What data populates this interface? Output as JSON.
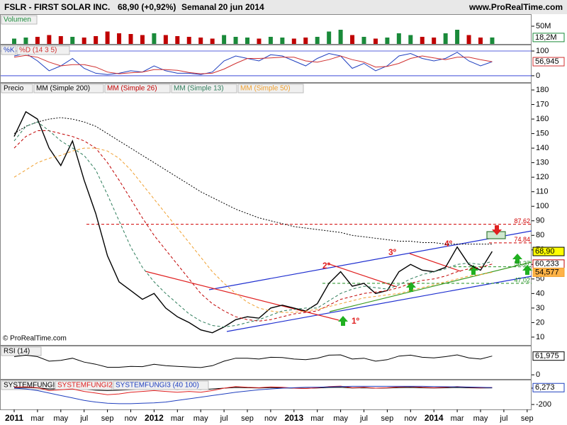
{
  "header": {
    "symbol": "FSLR - FIRST SOLAR INC.",
    "quote": "68,90 (+0,92%)",
    "period": "Semanal",
    "date": "20 jun 2014",
    "site": "www.ProRealTime.com"
  },
  "annotations": {
    "copyright": "© ProRealTime.com",
    "wave1": "1º",
    "wave2": "2º",
    "wave3": "3º",
    "wave4": "4º"
  },
  "chart_data": [
    {
      "type": "line",
      "x": [
        "2011-01",
        "2011-02",
        "2011-03",
        "2011-04",
        "2011-05",
        "2011-06",
        "2011-07",
        "2011-08",
        "2011-09",
        "2011-10",
        "2011-11",
        "2011-12",
        "2012-01",
        "2012-02",
        "2012-03",
        "2012-04",
        "2012-05",
        "2012-06",
        "2012-07",
        "2012-08",
        "2012-09",
        "2012-10",
        "2012-11",
        "2012-12",
        "2013-01",
        "2013-02",
        "2013-03",
        "2013-04",
        "2013-05",
        "2013-06",
        "2013-07",
        "2013-08",
        "2013-09",
        "2013-10",
        "2013-11",
        "2013-12",
        "2014-01",
        "2014-02",
        "2014-03",
        "2014-04",
        "2014-05",
        "2014-06"
      ],
      "xticks": [
        {
          "value": "2011-01",
          "label": "2011"
        },
        {
          "value": "2011-03",
          "label": "mar"
        },
        {
          "value": "2011-05",
          "label": "may"
        },
        {
          "value": "2011-07",
          "label": "jul"
        },
        {
          "value": "2011-09",
          "label": "sep"
        },
        {
          "value": "2011-11",
          "label": "nov"
        },
        {
          "value": "2012-01",
          "label": "2012"
        },
        {
          "value": "2012-03",
          "label": "mar"
        },
        {
          "value": "2012-05",
          "label": "may"
        },
        {
          "value": "2012-07",
          "label": "jul"
        },
        {
          "value": "2012-09",
          "label": "sep"
        },
        {
          "value": "2012-11",
          "label": "nov"
        },
        {
          "value": "2013-01",
          "label": "2013"
        },
        {
          "value": "2013-03",
          "label": "mar"
        },
        {
          "value": "2013-05",
          "label": "may"
        },
        {
          "value": "2013-07",
          "label": "jul"
        },
        {
          "value": "2013-09",
          "label": "sep"
        },
        {
          "value": "2013-11",
          "label": "nov"
        },
        {
          "value": "2014-01",
          "label": "2014"
        },
        {
          "value": "2014-03",
          "label": "mar"
        },
        {
          "value": "2014-05",
          "label": "may"
        },
        {
          "value": "2014-07",
          "label": "jul"
        },
        {
          "value": "2014-09",
          "label": "sep"
        }
      ],
      "ylim": [
        4.6,
        184.4
      ],
      "yticks": [
        10,
        20,
        30,
        40,
        50,
        60,
        70,
        80,
        90,
        100,
        110,
        120,
        130,
        140,
        150,
        160,
        170,
        180
      ],
      "series": [
        {
          "name": "Precio",
          "color": "#000000",
          "style": "solid",
          "last_label": "68,90",
          "label_bg": "#ffff00",
          "values": [
            148,
            165,
            160,
            140,
            128,
            145,
            118,
            95,
            66,
            48,
            42,
            36,
            40,
            30,
            24,
            20,
            15,
            13,
            17,
            22,
            24,
            23,
            30,
            32,
            30,
            28,
            33,
            47,
            55,
            45,
            47,
            40,
            42,
            55,
            60,
            56,
            55,
            58,
            72,
            60,
            56,
            68.9
          ]
        },
        {
          "name": "MM (Simple 200)",
          "color": "#000000",
          "style": "dotted",
          "values": [
            150,
            155,
            158,
            160,
            161,
            160,
            158,
            155,
            150,
            145,
            140,
            135,
            130,
            125,
            120,
            115,
            110,
            106,
            102,
            98,
            95,
            92,
            90,
            88,
            86,
            85,
            84,
            83,
            82,
            80,
            79,
            78,
            77,
            76,
            76,
            75,
            75,
            74,
            74,
            74,
            74,
            74
          ]
        },
        {
          "name": "MM (Simple 26)",
          "color": "#c00000",
          "style": "dashed",
          "last_label": "60,233",
          "label_bg": "#ffffff",
          "values": [
            140,
            148,
            152,
            152,
            150,
            148,
            145,
            140,
            130,
            118,
            105,
            92,
            80,
            70,
            60,
            50,
            40,
            33,
            28,
            24,
            22,
            21,
            22,
            24,
            26,
            27,
            28,
            32,
            36,
            38,
            40,
            41,
            42,
            44,
            47,
            49,
            50,
            52,
            55,
            57,
            58,
            60.233
          ]
        },
        {
          "name": "MM (Simple 13)",
          "color": "#2e7d5b",
          "style": "dashed",
          "values": [
            145,
            155,
            158,
            152,
            145,
            140,
            135,
            125,
            108,
            90,
            72,
            58,
            48,
            40,
            33,
            26,
            21,
            18,
            17,
            18,
            20,
            22,
            25,
            28,
            29,
            30,
            30,
            35,
            40,
            43,
            45,
            44,
            43,
            46,
            50,
            53,
            55,
            57,
            60,
            61,
            60,
            62
          ]
        },
        {
          "name": "MM (Simple 50)",
          "color": "#f0a030",
          "style": "dashed",
          "last_label": "54,577",
          "label_bg": "#ffb347",
          "values": [
            120,
            125,
            130,
            133,
            135,
            138,
            140,
            140,
            138,
            133,
            125,
            115,
            105,
            95,
            85,
            75,
            65,
            55,
            47,
            40,
            34,
            30,
            28,
            27,
            27,
            28,
            29,
            31,
            33,
            35,
            37,
            38,
            39,
            40,
            42,
            44,
            46,
            48,
            50,
            52,
            53,
            54.577
          ]
        }
      ],
      "levels": [
        {
          "value": 87.62,
          "label": "87,62",
          "color": "#d00000"
        },
        {
          "value": 74.84,
          "label": "74,84",
          "color": "#d00000"
        },
        {
          "value": 58.37,
          "label": "58,37",
          "color": "#209020"
        },
        {
          "value": 47.02,
          "label": "47,02",
          "color": "#209020"
        }
      ]
    },
    {
      "type": "bar",
      "ylim": [
        -2,
        82
      ],
      "yticks": [
        {
          "value": 50,
          "label": "50M"
        }
      ],
      "up_color": "#1a8a3a",
      "down_color": "#c00000",
      "series": [
        {
          "name": "Volumen",
          "color": "#1a8a3a",
          "last_label": "18,2M",
          "label_bg": "#ffffff",
          "values": [
            15,
            18,
            20,
            25,
            22,
            20,
            18,
            22,
            35,
            30,
            28,
            25,
            30,
            25,
            22,
            20,
            18,
            15,
            25,
            20,
            18,
            15,
            20,
            18,
            15,
            18,
            20,
            35,
            40,
            25,
            20,
            15,
            18,
            30,
            25,
            20,
            18,
            30,
            40,
            25,
            18,
            18.2
          ]
        }
      ]
    },
    {
      "type": "line",
      "ylim": [
        -26,
        123
      ],
      "yticks": [
        0,
        100
      ],
      "grid": true,
      "series": [
        {
          "name": "%K",
          "color": "#1f3fbf",
          "style": "solid",
          "values": [
            80,
            90,
            60,
            20,
            40,
            70,
            30,
            10,
            5,
            10,
            20,
            15,
            40,
            20,
            10,
            10,
            5,
            15,
            60,
            80,
            70,
            60,
            85,
            80,
            60,
            40,
            70,
            90,
            80,
            30,
            50,
            20,
            40,
            80,
            90,
            70,
            60,
            70,
            95,
            60,
            40,
            56.945
          ]
        },
        {
          "name": "%D (14 3 5)",
          "color": "#d03030",
          "style": "solid",
          "last_label": "56,945",
          "label_bg": "#ffffff",
          "values": [
            75,
            82,
            75,
            55,
            40,
            45,
            45,
            35,
            15,
            8,
            12,
            15,
            25,
            25,
            22,
            13,
            8,
            10,
            27,
            50,
            70,
            70,
            72,
            75,
            75,
            60,
            55,
            65,
            80,
            65,
            55,
            35,
            38,
            50,
            70,
            80,
            72,
            65,
            75,
            75,
            65,
            56.945
          ]
        }
      ]
    },
    {
      "type": "line",
      "ylim": [
        -16,
        94
      ],
      "yticks": [
        0
      ],
      "series": [
        {
          "name": "RSI (14)",
          "color": "#000000",
          "style": "solid",
          "last_label": "61,975",
          "label_bg": "#ffffff",
          "values": [
            60,
            65,
            60,
            45,
            48,
            55,
            42,
            35,
            25,
            25,
            28,
            27,
            35,
            30,
            28,
            26,
            24,
            30,
            45,
            55,
            55,
            52,
            58,
            57,
            52,
            50,
            55,
            65,
            66,
            52,
            55,
            45,
            50,
            62,
            65,
            58,
            56,
            60,
            66,
            56,
            52,
            61.975
          ]
        }
      ]
    },
    {
      "type": "line",
      "ylim": [
        -260,
        95
      ],
      "yticks": [
        0,
        -200
      ],
      "series": [
        {
          "name": "SYSTEMFUNGI",
          "color": "#000000",
          "style": "solid",
          "values": [
            5,
            8,
            3,
            -10,
            -8,
            -5,
            -15,
            -25,
            -30,
            -25,
            -20,
            -15,
            -12,
            -15,
            -18,
            -15,
            -18,
            -10,
            0,
            8,
            5,
            2,
            6,
            4,
            0,
            -2,
            2,
            8,
            10,
            2,
            4,
            0,
            2,
            6,
            8,
            4,
            2,
            4,
            8,
            4,
            2,
            3
          ]
        },
        {
          "name": "SYSTEMFUNGI2",
          "color": "#e02020",
          "style": "solid",
          "values": [
            10,
            15,
            5,
            -30,
            -20,
            -10,
            -40,
            -60,
            -80,
            -70,
            -50,
            -40,
            -30,
            -40,
            -50,
            -40,
            -50,
            -30,
            0,
            20,
            10,
            5,
            15,
            10,
            0,
            -5,
            5,
            20,
            25,
            5,
            10,
            0,
            5,
            15,
            20,
            10,
            5,
            10,
            20,
            10,
            5,
            8
          ]
        },
        {
          "name": "SYSTEMFUNGI3 (40 100)",
          "color": "#1f3fbf",
          "style": "solid",
          "last_label": "6,273",
          "label_bg": "#ffffff",
          "values": [
            0,
            -10,
            -30,
            -60,
            -90,
            -120,
            -150,
            -170,
            -185,
            -190,
            -190,
            -185,
            -180,
            -170,
            -150,
            -130,
            -110,
            -90,
            -70,
            -50,
            -35,
            -20,
            -10,
            0,
            5,
            10,
            12,
            15,
            20,
            22,
            22,
            22,
            22,
            22,
            22,
            22,
            20,
            18,
            16,
            14,
            10,
            6.273
          ]
        }
      ]
    }
  ]
}
